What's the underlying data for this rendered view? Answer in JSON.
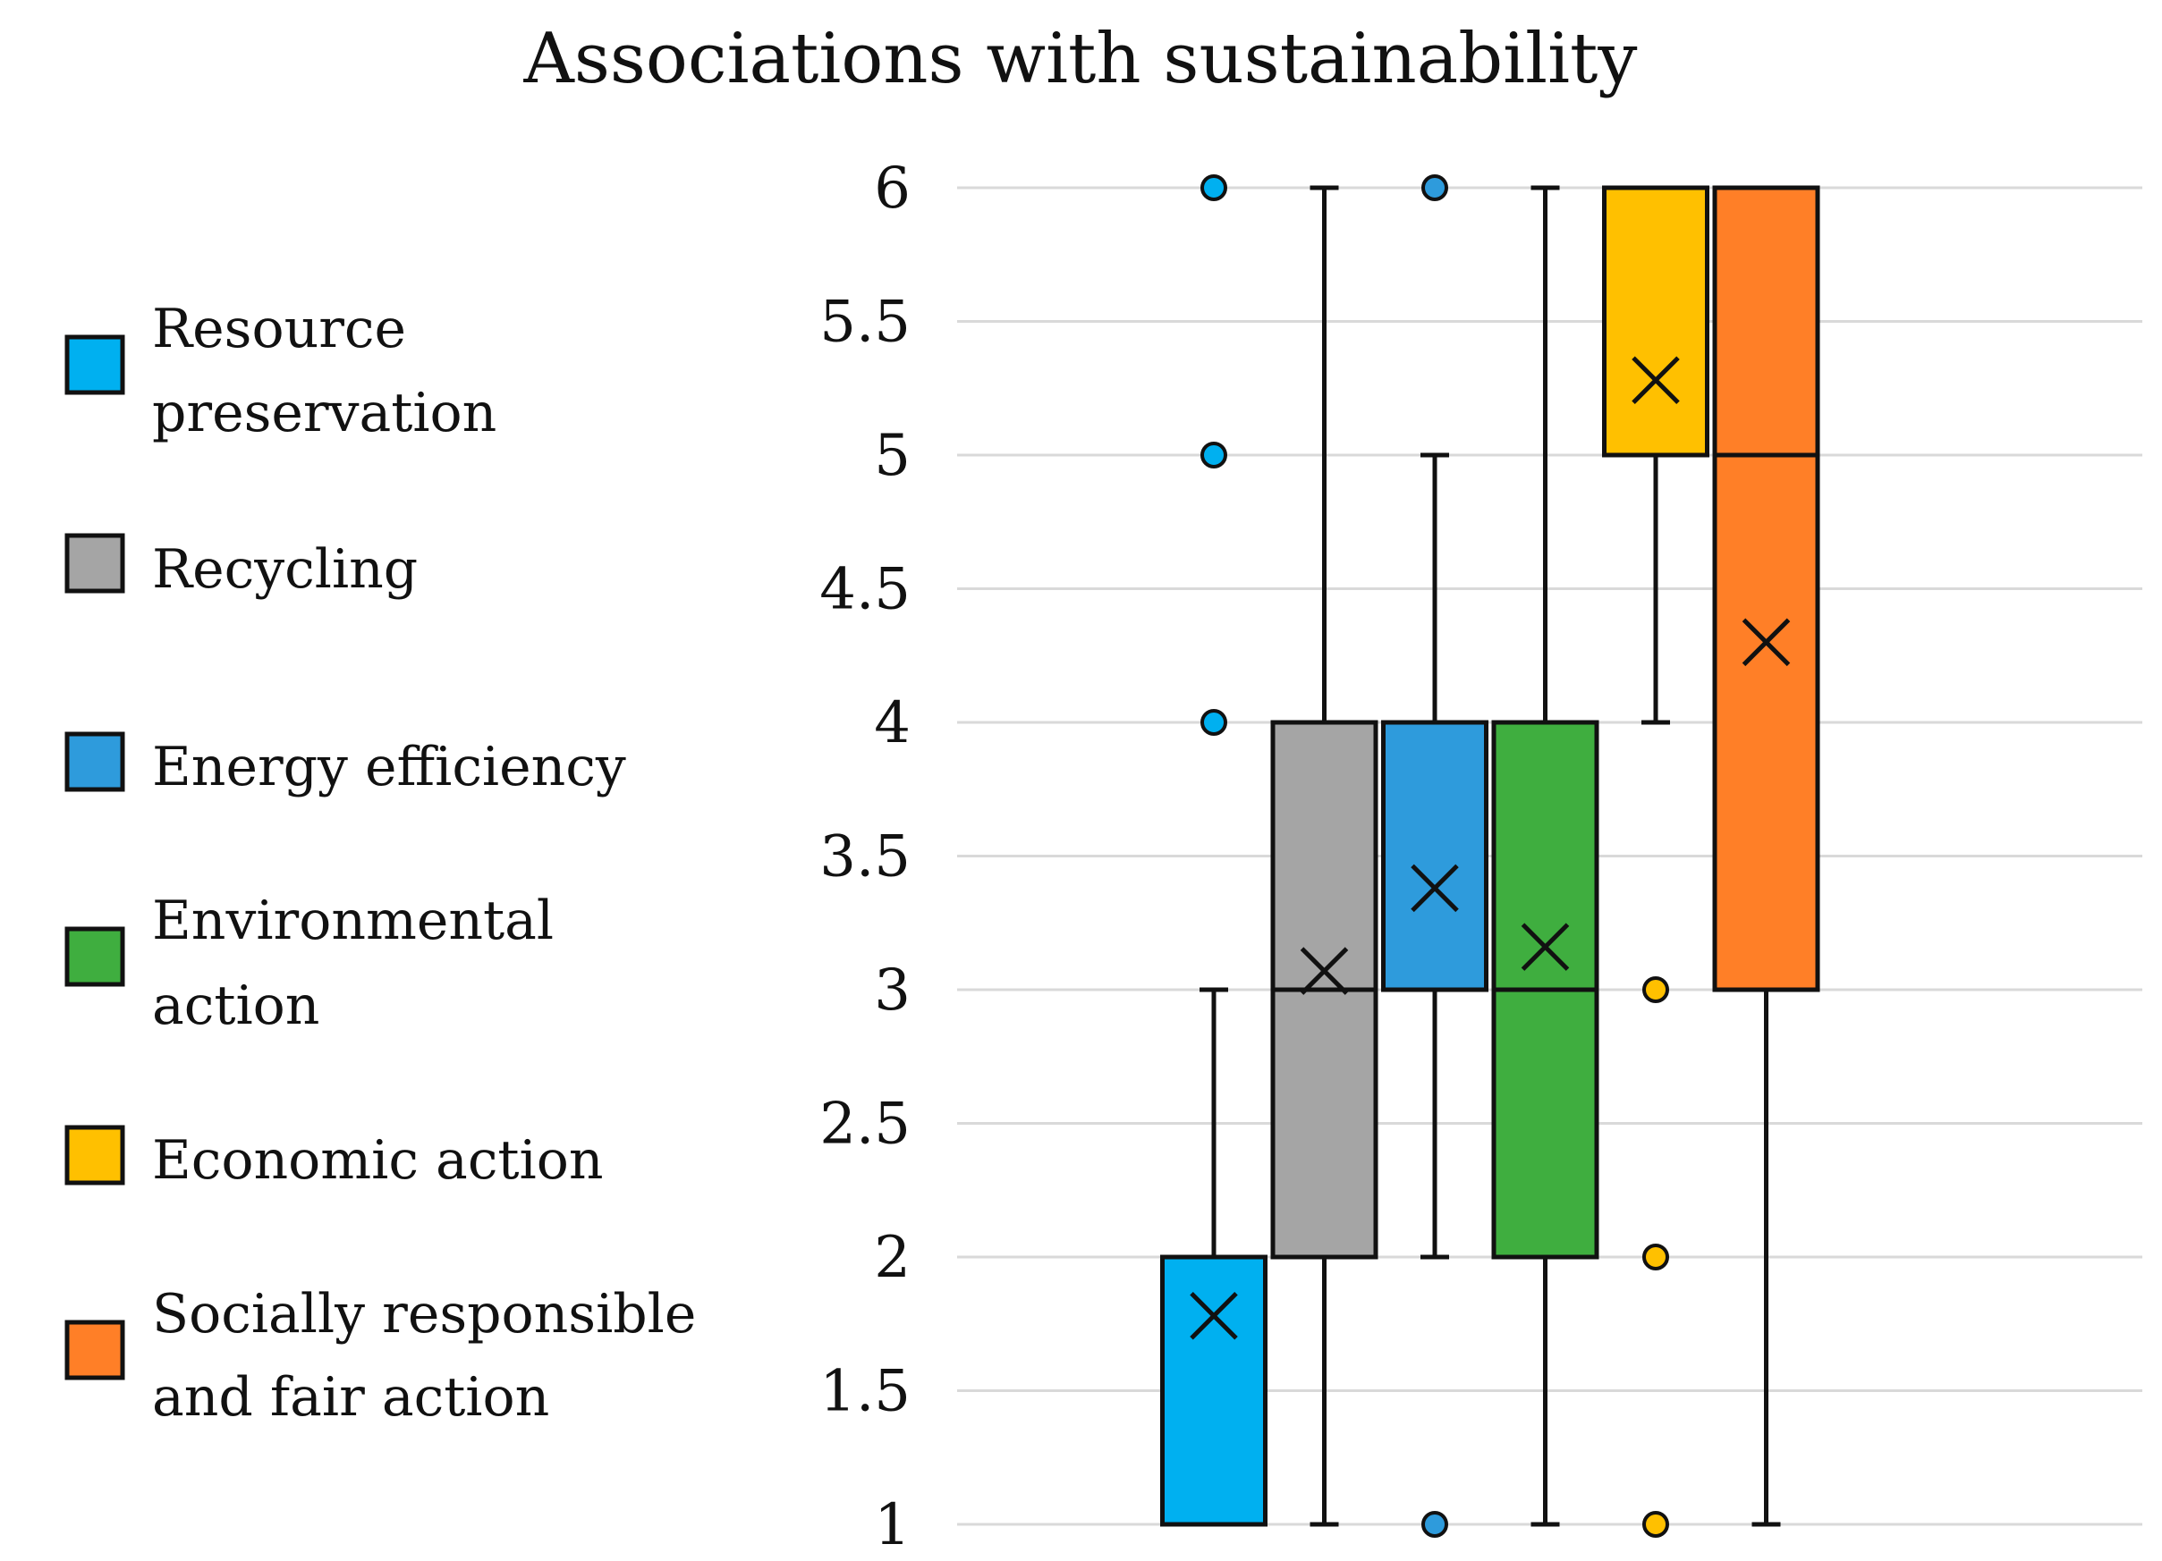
{
  "chart_data": {
    "type": "box",
    "title": "Associations with sustainability",
    "xlabel": "",
    "ylabel": "",
    "ylim": [
      1,
      6
    ],
    "yticks": [
      1,
      1.5,
      2,
      2.5,
      3,
      3.5,
      4,
      4.5,
      5,
      5.5,
      6
    ],
    "ytick_labels": [
      "1",
      "1.5",
      "2",
      "2.5",
      "3",
      "3.5",
      "4",
      "4.5",
      "5",
      "5.5",
      "6"
    ],
    "grid": true,
    "legend_position": "left",
    "series": [
      {
        "name": "Resource preservation",
        "legend_lines": [
          "Resource",
          "preservation"
        ],
        "color": "#00B0F0",
        "whisker_low": 1,
        "q1": 1,
        "median": 1,
        "q3": 2,
        "whisker_high": 3,
        "mean": 1.78,
        "outliers": [
          4,
          5,
          6
        ]
      },
      {
        "name": "Recycling",
        "legend_lines": [
          "Recycling"
        ],
        "color": "#A5A5A5",
        "whisker_low": 1,
        "q1": 2,
        "median": 3,
        "q3": 4,
        "whisker_high": 6,
        "mean": 3.07,
        "outliers": []
      },
      {
        "name": "Energy efficiency",
        "legend_lines": [
          "Energy efficiency"
        ],
        "color": "#2E9BDC",
        "whisker_low": 2,
        "q1": 3,
        "median": 3,
        "q3": 4,
        "whisker_high": 5,
        "mean": 3.38,
        "outliers": [
          1,
          6
        ]
      },
      {
        "name": "Environmental action",
        "legend_lines": [
          "Environmental",
          "action"
        ],
        "color": "#3FAE3F",
        "whisker_low": 1,
        "q1": 2,
        "median": 3,
        "q3": 4,
        "whisker_high": 6,
        "mean": 3.16,
        "outliers": []
      },
      {
        "name": "Economic action",
        "legend_lines": [
          "Economic action"
        ],
        "color": "#FFC000",
        "whisker_low": 4,
        "q1": 5,
        "median": 6,
        "q3": 6,
        "whisker_high": 6,
        "mean": 5.28,
        "outliers": [
          1,
          2,
          3
        ]
      },
      {
        "name": "Socially responsible and fair action",
        "legend_lines": [
          "Socially responsible",
          "and fair action"
        ],
        "color": "#FF7F27",
        "whisker_low": 1,
        "q1": 3,
        "median": 5,
        "q3": 6,
        "whisker_high": 6,
        "mean": 4.3,
        "outliers": []
      }
    ]
  }
}
